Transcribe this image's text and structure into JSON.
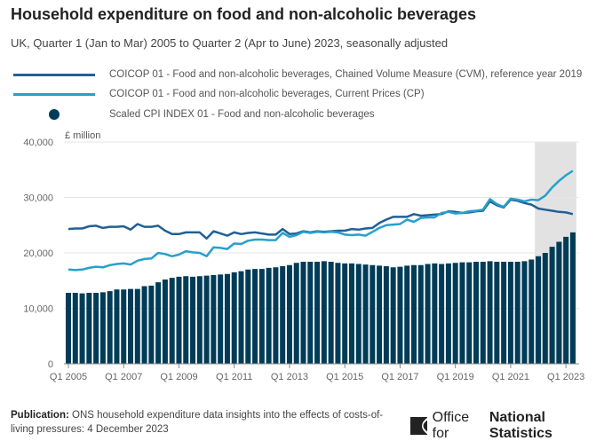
{
  "header": {
    "title": "Household expenditure on food and non-alcoholic beverages",
    "subtitle": "UK, Quarter 1 (Jan to Mar) 2005 to Quarter 2 (Apr to June) 2023, seasonally adjusted"
  },
  "footer": {
    "publication_label": "Publication:",
    "publication_text": "ONS household expenditure data insights into the effects of costs-of-living pressures: 4 December 2023",
    "logo_text_light": "Office for",
    "logo_text_bold": "National Statistics"
  },
  "chart_data": {
    "type": "bar+line",
    "title": "Household expenditure on food and non-alcoholic beverages",
    "ylabel": "£ million",
    "ylim": [
      0,
      40000
    ],
    "yticks": [
      "0",
      "10,000",
      "20,000",
      "30,000",
      "40,000"
    ],
    "xticks": [
      "Q1 2005",
      "Q1 2007",
      "Q1 2009",
      "Q1 2011",
      "Q1 2013",
      "Q1 2015",
      "Q1 2017",
      "Q1 2019",
      "Q1 2021",
      "Q1 2023"
    ],
    "x_range": [
      "Q1 2005",
      "Q2 2023"
    ],
    "shaded_period": [
      "Q1 2022",
      "Q2 2023"
    ],
    "grid": true,
    "legend_position": "top",
    "colors": {
      "cvm": "#206095",
      "cp": "#27a0cc",
      "cpi": "#003c57",
      "shade": "#e2e2e2"
    },
    "series": [
      {
        "name": "COICOP 01 - Food and non-alcoholic beverages, Chained Volume Measure (CVM), reference year 2019",
        "kind": "line",
        "values": [
          24300,
          24400,
          24400,
          24800,
          24900,
          24500,
          24700,
          24700,
          24800,
          24200,
          25200,
          24700,
          24700,
          24900,
          24000,
          23400,
          23400,
          23700,
          23700,
          23700,
          22600,
          23900,
          23500,
          23100,
          23700,
          23400,
          23600,
          23700,
          23500,
          23300,
          23300,
          24300,
          23400,
          23500,
          23900,
          23700,
          23900,
          23800,
          23900,
          24000,
          24000,
          24300,
          24200,
          24400,
          24500,
          25400,
          26000,
          26500,
          26500,
          26500,
          27000,
          26700,
          26800,
          26900,
          27000,
          27500,
          27400,
          27200,
          27300,
          27500,
          27600,
          29300,
          28600,
          28200,
          29600,
          29400,
          29000,
          28700,
          28000,
          27800,
          27600,
          27400,
          27300,
          27000
        ]
      },
      {
        "name": "COICOP 01 - Food and non-alcoholic beverages, Current Prices (CP)",
        "kind": "line",
        "values": [
          17000,
          16900,
          17000,
          17300,
          17500,
          17400,
          17800,
          18000,
          18100,
          17900,
          18600,
          18900,
          19000,
          20000,
          19800,
          19400,
          19700,
          20300,
          20100,
          20000,
          19400,
          21000,
          20900,
          20700,
          21700,
          21600,
          22200,
          22400,
          22400,
          22300,
          22300,
          23600,
          22900,
          23200,
          23800,
          23600,
          23800,
          23700,
          23800,
          23700,
          23300,
          23200,
          23300,
          23100,
          23800,
          24500,
          25000,
          25100,
          25200,
          26000,
          25600,
          26300,
          26400,
          26400,
          27200,
          27400,
          27100,
          27200,
          27500,
          27600,
          27800,
          29700,
          28800,
          28300,
          29800,
          29600,
          29300,
          29600,
          29500,
          30300,
          31800,
          33000,
          34000,
          34800
        ]
      },
      {
        "name": "Scaled CPI INDEX 01 - Food and non-alcoholic beverages",
        "kind": "bar",
        "values": [
          12800,
          12800,
          12700,
          12800,
          12800,
          12900,
          13100,
          13400,
          13400,
          13500,
          13500,
          14000,
          14100,
          14700,
          15200,
          15500,
          15700,
          15800,
          15700,
          15800,
          15900,
          16000,
          16100,
          16200,
          16500,
          16700,
          17000,
          17100,
          17100,
          17300,
          17400,
          17600,
          17800,
          18200,
          18400,
          18400,
          18400,
          18500,
          18400,
          18200,
          18100,
          18100,
          18000,
          17900,
          17800,
          17700,
          17600,
          17400,
          17500,
          17700,
          17800,
          17800,
          18000,
          18100,
          18000,
          18100,
          18200,
          18300,
          18300,
          18400,
          18400,
          18500,
          18400,
          18400,
          18400,
          18400,
          18500,
          18800,
          19400,
          20000,
          21100,
          22000,
          22900,
          23700
        ]
      }
    ]
  }
}
